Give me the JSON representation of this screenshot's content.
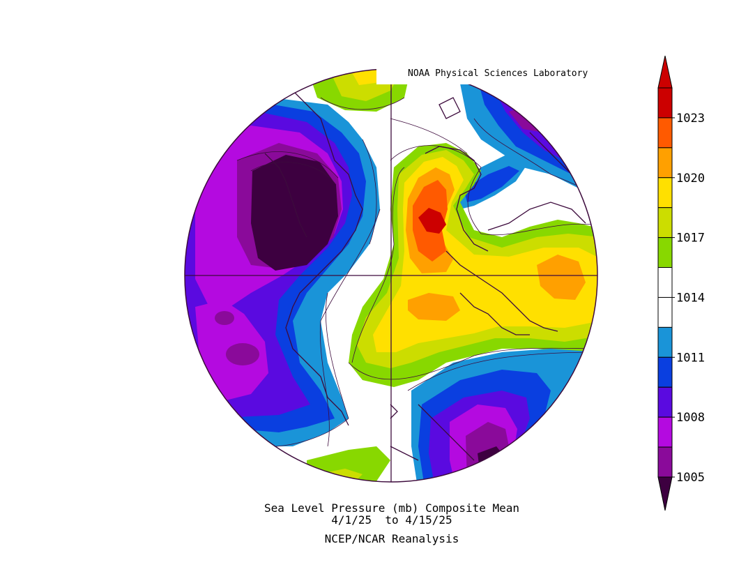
{
  "header": {
    "credit": "NOAA Physical Sciences Laboratory"
  },
  "title": {
    "line1": "Sea Level Pressure (mb) Composite Mean",
    "line2": "4/1/25  to 4/15/25",
    "source": "NCEP/NCAR Reanalysis"
  },
  "colorbar": {
    "labels": [
      "1023",
      "1020",
      "1017",
      "1014",
      "1011",
      "1008",
      "1005"
    ],
    "colors": [
      "#cc0000",
      "#ff5a00",
      "#ffa000",
      "#ffe000",
      "#ccdd00",
      "#88d800",
      "#ffffff",
      "#ffffff",
      "#1a94d8",
      "#0a3fe0",
      "#5a0ae0",
      "#b40ae0",
      "#8a0a9a"
    ],
    "under_color": "#3d0040",
    "over_color": "#cc0000"
  },
  "colors": {
    "coast": "#3d0b3d",
    "deep_low": "#3d0040",
    "low_1005": "#8a0a9a",
    "magenta": "#b40ae0",
    "violet": "#5a0ae0",
    "blue": "#0a3fe0",
    "lightblue": "#1a94d8",
    "green": "#88d800",
    "yellowgreen": "#ccdd00",
    "yellow": "#ffe000",
    "orange": "#ffa000",
    "redorange": "#ff5a00",
    "red": "#cc0000"
  }
}
